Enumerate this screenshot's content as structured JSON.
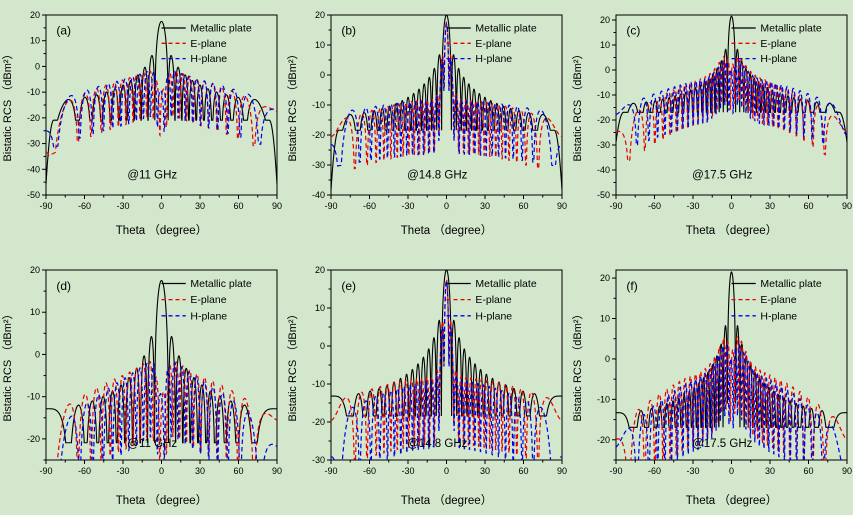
{
  "figure": {
    "background": "#d2e7cc",
    "axis_color": "#000000",
    "xlabel": "Theta （degree）",
    "ylabel": "Bistatic RCS （dBm²）",
    "xlim": [
      -90,
      90
    ],
    "xticks": [
      -90,
      -60,
      -30,
      0,
      30,
      60,
      90
    ],
    "x_minor_step": 15,
    "y_minor_step": 5,
    "legend_position": "upper right",
    "grid": false,
    "legend": [
      {
        "name": "Metallic plate",
        "color": "#000000",
        "style": "solid"
      },
      {
        "name": "E-plane",
        "color": "#e60000",
        "style": "dashed"
      },
      {
        "name": "H-plane",
        "color": "#0000ee",
        "style": "dashed"
      }
    ]
  },
  "chart_data": [
    {
      "type": "line",
      "panel": "(a)",
      "annotation": "@11 GHz",
      "xlabel": "Theta （degree）",
      "ylabel": "Bistatic RCS （dBm²）",
      "xlim": [
        -90,
        90
      ],
      "xticks": [
        -90,
        -60,
        -30,
        0,
        30,
        60,
        90
      ],
      "ylim": [
        -50,
        20
      ],
      "yticks": [
        20,
        10,
        0,
        -10,
        -20,
        -30,
        -40,
        -50
      ],
      "series": [
        {
          "name": "Metallic plate",
          "color": "#000000",
          "style": "solid",
          "model": "plate",
          "peak_db": 17.5,
          "lobes": 11,
          "edge_drop_db": 25,
          "description": "sinc^2 plate pattern, main lobe 17.5 dBm2 at 0 deg, sidelobe envelope -3..-12 dB falling, bumps -10 dB near ±75 deg, plunges below -45 at ±90"
        },
        {
          "name": "E-plane",
          "color": "#e60000",
          "style": "dashed",
          "model": "ripple",
          "edge_db": -17.5,
          "mid_db": -3.5,
          "center_db": -0.5,
          "center_w": 18,
          "notch_db": 9,
          "notch_w": 5,
          "lobes": 11.3,
          "phase": 0.25,
          "description": "suppressed main beam: ~-10 dB notch at 0, shoulders ~0 dB at ±15, lobes decaying to ~-18 at edges, dips to -25 near ±65"
        },
        {
          "name": "H-plane",
          "color": "#0000ee",
          "style": "dashed",
          "model": "ripple",
          "edge_db": -15,
          "mid_db": -4,
          "center_db": -1,
          "center_w": 20,
          "notch_db": 8.5,
          "notch_w": 4,
          "lobes": 10.7,
          "phase": 0.6,
          "description": "notch ~-10 dB at 0, lobes ~-3 dB near ±43, ~-15 dB at edges"
        }
      ]
    },
    {
      "type": "line",
      "panel": "(b)",
      "annotation": "@14.8 GHz",
      "xlabel": "Theta （degree）",
      "ylabel": "Bistatic RCS （dBm²）",
      "xlim": [
        -90,
        90
      ],
      "xticks": [
        -90,
        -60,
        -30,
        0,
        30,
        60,
        90
      ],
      "ylim": [
        -40,
        20
      ],
      "yticks": [
        20,
        10,
        0,
        -10,
        -20,
        -30,
        -40
      ],
      "series": [
        {
          "name": "Metallic plate",
          "color": "#000000",
          "style": "solid",
          "model": "plate",
          "peak_db": 20,
          "lobes": 15,
          "edge_drop_db": 20,
          "description": "main lobe 20 dBm2 at 0, dense sidelobes, envelope bump -11 near ±78, drops to ~-34 at ±90"
        },
        {
          "name": "E-plane",
          "color": "#e60000",
          "style": "dashed",
          "model": "ripple",
          "edge_db": -16,
          "mid_db": -8,
          "center_db": 17.5,
          "center_w": 4.5,
          "notch_db": 0,
          "notch_w": 1,
          "lobes": 15.3,
          "phase": 0.5,
          "description": "follows main beam to ~17.5 at 0, sidelobes dip to -30 near ±65"
        },
        {
          "name": "H-plane",
          "color": "#0000ee",
          "style": "dashed",
          "model": "ripple",
          "edge_db": -13,
          "mid_db": -8.5,
          "center_db": 17,
          "center_w": 4.5,
          "notch_db": 0,
          "notch_w": 1,
          "lobes": 14.6,
          "phase": 0.5,
          "description": "follows main beam to ~17 at 0, flat ~-13 at edges"
        }
      ]
    },
    {
      "type": "line",
      "panel": "(c)",
      "annotation": "@17.5 GHz",
      "xlabel": "Theta （degree）",
      "ylabel": "Bistatic RCS （dBm²）",
      "xlim": [
        -90,
        90
      ],
      "xticks": [
        -90,
        -60,
        -30,
        0,
        30,
        60,
        90
      ],
      "ylim": [
        -50,
        22
      ],
      "yticks": [
        20,
        10,
        0,
        -10,
        -20,
        -30,
        -40,
        -50
      ],
      "series": [
        {
          "name": "Metallic plate",
          "color": "#000000",
          "style": "solid",
          "model": "plate",
          "peak_db": 21.5,
          "lobes": 18,
          "edge_drop_db": 12,
          "description": "main lobe 21.5 dBm2, first sidelobes ~8.5, bump -10 near ±77, ~-30 at ±90"
        },
        {
          "name": "E-plane",
          "color": "#e60000",
          "style": "dashed",
          "model": "ripple",
          "edge_db": -22,
          "mid_db": -2,
          "center_db": 8,
          "center_w": 12,
          "notch_db": 6,
          "notch_w": 3.5,
          "lobes": 16.5,
          "phase": 0.25,
          "description": "notch ~0 dB at 0, shoulders ~+4.5 at ±11, ~-19..-23 at edges"
        },
        {
          "name": "H-plane",
          "color": "#0000ee",
          "style": "dashed",
          "model": "ripple",
          "edge_db": -16,
          "mid_db": -3,
          "center_db": 6,
          "center_w": 12,
          "notch_db": 6,
          "notch_w": 3.5,
          "lobes": 17.3,
          "phase": 0.6,
          "description": "notch ~-4 dB at 0, shoulders ~+4, ~-15 at edges"
        }
      ]
    },
    {
      "type": "line",
      "panel": "(d)",
      "annotation": "@11 GHz",
      "xlabel": "Theta （degree）",
      "ylabel": "Bistatic RCS （dBm²）",
      "xlim": [
        -90,
        90
      ],
      "xticks": [
        -90,
        -60,
        -30,
        0,
        30,
        60,
        90
      ],
      "ylim": [
        -25,
        20
      ],
      "yticks": [
        20,
        10,
        0,
        -10,
        -20
      ],
      "series": [
        {
          "name": "Metallic plate",
          "color": "#000000",
          "style": "solid",
          "model": "plate",
          "peak_db": 17.5,
          "lobes": 10.5,
          "edge_drop_db": 0,
          "description": "main lobe 17.5 dBm2, envelope flattening to ~-14 at ±90 (no edge plunge)"
        },
        {
          "name": "E-plane",
          "color": "#e60000",
          "style": "dashed",
          "model": "ripple",
          "edge_db": -15.5,
          "mid_db": -3.5,
          "center_db": -0.5,
          "center_w": 18,
          "notch_db": 9,
          "notch_w": 5,
          "lobes": 11.3,
          "phase": 0.25,
          "description": "notch ~-10 at 0, shoulders ~0, bumps -3 near ±43, ~-15 flat at edges"
        },
        {
          "name": "H-plane",
          "color": "#0000ee",
          "style": "dashed",
          "model": "ripple",
          "edge_db": -20,
          "mid_db": -4,
          "center_db": -1,
          "center_w": 20,
          "notch_db": 8.5,
          "notch_w": 4,
          "lobes": 10.7,
          "phase": 0.6,
          "description": "notch ~-10 at 0, dips to -23 near ±67, ~-19 at edges"
        }
      ]
    },
    {
      "type": "line",
      "panel": "(e)",
      "annotation": "@14.8 GHz",
      "xlabel": "Theta （degree）",
      "ylabel": "Bistatic RCS （dBm²）",
      "xlim": [
        -90,
        90
      ],
      "xticks": [
        -90,
        -60,
        -30,
        0,
        30,
        60,
        90
      ],
      "ylim": [
        -30,
        20
      ],
      "yticks": [
        20,
        10,
        0,
        -10,
        -20,
        -30
      ],
      "series": [
        {
          "name": "Metallic plate",
          "color": "#000000",
          "style": "solid",
          "model": "plate",
          "peak_db": 20,
          "lobes": 14.5,
          "edge_drop_db": 0,
          "description": "main lobe 20 dBm2, envelope flat ~-14 at edges"
        },
        {
          "name": "E-plane",
          "color": "#e60000",
          "style": "dashed",
          "model": "ripple",
          "edge_db": -15,
          "mid_db": -8,
          "center_db": 17.5,
          "center_w": 4.5,
          "notch_db": 0,
          "notch_w": 1,
          "lobes": 15.3,
          "phase": 0.5,
          "description": "follows main beam to ~17.5, ~-15 at edges"
        },
        {
          "name": "H-plane",
          "color": "#0000ee",
          "style": "dashed",
          "model": "ripple",
          "edge_db": -19,
          "mid_db": -9,
          "center_db": 17,
          "center_w": 4.5,
          "notch_db": 0,
          "notch_w": 1,
          "lobes": 14.6,
          "phase": 0.5,
          "description": "follows main beam to ~17, deep dips to -27 near ±67, ~-19..-21 at edges"
        }
      ]
    },
    {
      "type": "line",
      "panel": "(f)",
      "annotation": "@17.5 GHz",
      "xlabel": "Theta （degree）",
      "ylabel": "Bistatic RCS （dBm²）",
      "xlim": [
        -90,
        90
      ],
      "xticks": [
        -90,
        -60,
        -30,
        0,
        30,
        60,
        90
      ],
      "ylim": [
        -25,
        22
      ],
      "yticks": [
        20,
        10,
        0,
        -10,
        -20
      ],
      "series": [
        {
          "name": "Metallic plate",
          "color": "#000000",
          "style": "solid",
          "model": "plate",
          "peak_db": 21.5,
          "lobes": 17.5,
          "edge_drop_db": 0,
          "description": "main lobe 21.5 dBm2, envelope flat ~-14.5 at edges"
        },
        {
          "name": "E-plane",
          "color": "#e60000",
          "style": "dashed",
          "model": "ripple",
          "edge_db": -17,
          "mid_db": -2,
          "center_db": 8,
          "center_w": 12,
          "notch_db": 6,
          "notch_w": 3.5,
          "lobes": 16.5,
          "phase": 0.25,
          "description": "notch ~0 at 0, shoulders ~+4.5, ~-17 at edges, dip -22 near ±55"
        },
        {
          "name": "H-plane",
          "color": "#0000ee",
          "style": "dashed",
          "model": "ripple",
          "edge_db": -20,
          "mid_db": -3,
          "center_db": 6,
          "center_w": 12,
          "notch_db": 6,
          "notch_w": 3.5,
          "lobes": 17.3,
          "phase": 0.6,
          "description": "notch ~-4 at 0, shoulders ~+4, ~-20 at edges, deep dive below -25 at ±90"
        }
      ]
    }
  ]
}
